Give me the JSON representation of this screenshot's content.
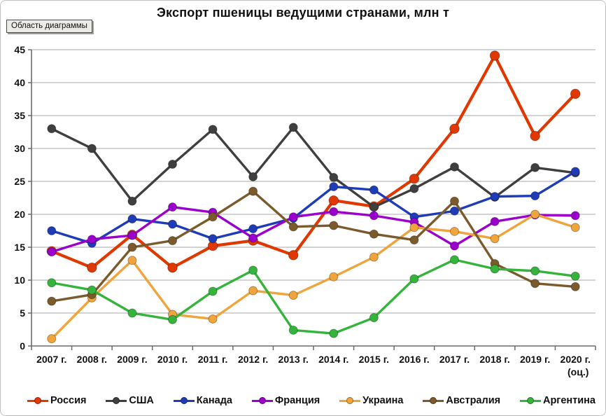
{
  "title": "Экспорт пшеницы ведущими странами, млн т",
  "tooltip": {
    "label": "Область диаграммы"
  },
  "chart_data": {
    "type": "line",
    "title": "Экспорт пшеницы ведущими странами, млн т",
    "xlabel": "",
    "ylabel": "",
    "ylim": [
      0,
      45
    ],
    "ytick_step": 5,
    "grid": true,
    "legend_position": "bottom",
    "categories": [
      "2007 г.",
      "2008 г.",
      "2009 г.",
      "2010 г.",
      "2011 г.",
      "2012 г.",
      "2013 г.",
      "2014 г.",
      "2015 г.",
      "2016 г.",
      "2017 г.",
      "2018 г.",
      "2019 г.",
      "2020 г."
    ],
    "last_category_note": "(оц.)",
    "series": [
      {
        "key": "russia",
        "name": "Россия",
        "color": "#E03800",
        "values": [
          14.4,
          11.9,
          16.9,
          11.9,
          15.2,
          16.0,
          13.8,
          22.1,
          21.2,
          25.4,
          33.0,
          44.1,
          31.9,
          38.3
        ]
      },
      {
        "key": "usa",
        "name": "США",
        "color": "#3F3F3F",
        "values": [
          33.0,
          30.0,
          22.0,
          27.6,
          32.9,
          25.7,
          33.2,
          25.6,
          21.1,
          23.9,
          27.2,
          22.6,
          27.1,
          26.3
        ]
      },
      {
        "key": "canada",
        "name": "Канада",
        "color": "#1E3CB8",
        "values": [
          17.5,
          15.6,
          19.3,
          18.5,
          16.3,
          17.8,
          19.4,
          24.2,
          23.7,
          19.6,
          20.5,
          22.7,
          22.8,
          26.5
        ]
      },
      {
        "key": "france",
        "name": "Франция",
        "color": "#9B00CC",
        "values": [
          14.3,
          16.2,
          16.8,
          21.1,
          20.3,
          16.4,
          19.6,
          20.4,
          19.8,
          18.8,
          15.2,
          18.9,
          19.9,
          19.8
        ]
      },
      {
        "key": "ukraine",
        "name": "Украина",
        "color": "#F0A43C",
        "values": [
          1.1,
          7.3,
          13.0,
          4.8,
          4.1,
          8.4,
          7.7,
          10.5,
          13.5,
          18.0,
          17.4,
          16.3,
          20.0,
          18.0
        ]
      },
      {
        "key": "australia",
        "name": "Австралия",
        "color": "#7B5A2B",
        "values": [
          6.8,
          7.8,
          15.0,
          16.0,
          19.6,
          23.5,
          18.1,
          18.3,
          17.0,
          16.1,
          22.0,
          12.5,
          9.5,
          9.0
        ]
      },
      {
        "key": "argentina",
        "name": "Аргентина",
        "color": "#35B43C",
        "values": [
          9.6,
          8.5,
          5.0,
          4.0,
          8.3,
          11.5,
          2.4,
          1.9,
          4.3,
          10.2,
          13.1,
          11.7,
          11.4,
          10.6
        ]
      }
    ],
    "axis_color": "#6b6b6b",
    "grid_color": "#a8a8a8",
    "label_color": "#111111"
  }
}
